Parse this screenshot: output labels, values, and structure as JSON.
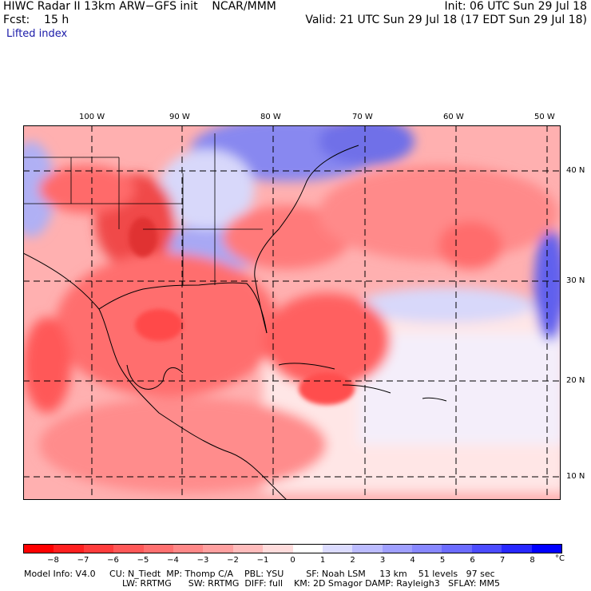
{
  "header": {
    "title_left": "HIWC Radar II 13km ARW−GFS init    NCAR/MMM",
    "init": "Init: 06 UTC Sun 29 Jul 18",
    "fcst": "Fcst:    15 h",
    "valid": "Valid: 21 UTC Sun 29 Jul 18 (17 EDT Sun 29 Jul 18)",
    "field": "Lifted index"
  },
  "lon_labels": [
    "100 W",
    "90 W",
    "80 W",
    "70 W",
    "60 W",
    "50 W"
  ],
  "lat_labels": [
    "40 N",
    "30 N",
    "20 N",
    "10 N"
  ],
  "colorbar": {
    "ticks": [
      "−8",
      "−7",
      "−6",
      "−5",
      "−4",
      "−3",
      "−2",
      "−1",
      "0",
      "1",
      "2",
      "3",
      "4",
      "5",
      "6",
      "7",
      "8"
    ],
    "unit": "°C",
    "colors": [
      "#ff0000",
      "#ff2020",
      "#ff3c3c",
      "#ff5858",
      "#ff7070",
      "#ff8888",
      "#ffa0a0",
      "#ffbcbc",
      "#ffdcdc",
      "#ffffff",
      "#dcdcff",
      "#bcbcff",
      "#a0a0ff",
      "#8888ff",
      "#6c6cff",
      "#4c4cff",
      "#2828ff",
      "#0000ff"
    ]
  },
  "footer": {
    "line1": "Model Info: V4.0     CU: N_Tiedt  MP: Thomp C/A    PBL: YSU        SF: Noah LSM     13 km    51 levels   97 sec",
    "line2": "LW: RRTMG      SW: RRTMG  DIFF: full    KM: 2D Smagor DAMP: Rayleigh3   SFLAY: MM5"
  }
}
